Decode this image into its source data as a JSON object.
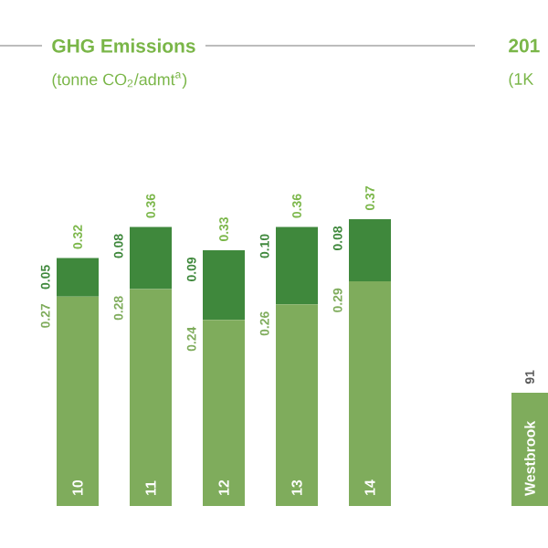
{
  "chart_data": [
    {
      "type": "bar",
      "title": "GHG Emissions",
      "subtitle": "(tonne CO$_{2}$/admt$^{a}$)",
      "categories": [
        "10",
        "11",
        "12",
        "13",
        "14"
      ],
      "stacked": true,
      "series": [
        {
          "color": "#7fac5c",
          "values": [
            0.27,
            0.28,
            0.24,
            0.26,
            0.29
          ],
          "value_labels": [
            "0.27",
            "0.28",
            "0.24",
            "0.26",
            "0.29"
          ]
        },
        {
          "color": "#3f883c",
          "values": [
            0.05,
            0.08,
            0.09,
            0.1,
            0.08
          ],
          "value_labels": [
            "0.05",
            "0.08",
            "0.09",
            "0.10",
            "0.08"
          ]
        }
      ],
      "totals": [
        "0.32",
        "0.36",
        "0.33",
        "0.36",
        "0.37"
      ]
    },
    {
      "type": "bar",
      "title": "201",
      "subtitle": "(1K",
      "categories": [
        "Westbrook"
      ],
      "values": [
        91
      ],
      "color": "#7fac5c",
      "data_labels": true
    }
  ]
}
